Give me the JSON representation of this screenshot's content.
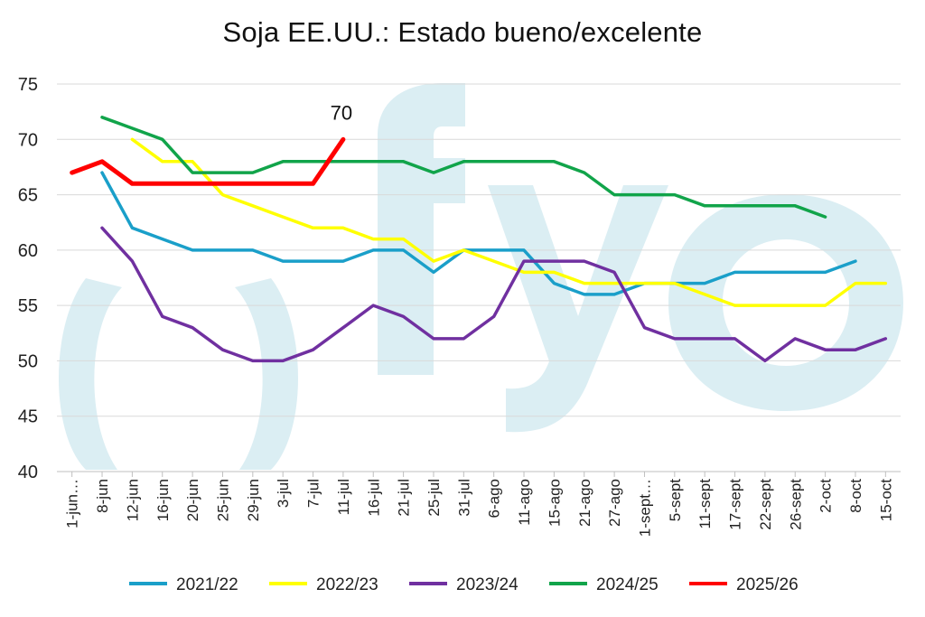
{
  "chart_data": {
    "type": "line",
    "title": "Soja EE.UU.: Estado bueno/excelente",
    "xlabel": "",
    "ylabel": "",
    "ylim": [
      40,
      75
    ],
    "yticks": [
      40,
      45,
      50,
      55,
      60,
      65,
      70,
      75
    ],
    "grid": true,
    "legend_position": "bottom",
    "categories": [
      "1-jun…",
      "8-jun",
      "12-jun",
      "16-jun",
      "20-jun",
      "25-jun",
      "29-jun",
      "3-jul",
      "7-jul",
      "11-jul",
      "16-jul",
      "21-jul",
      "25-jul",
      "31-jul",
      "6-ago",
      "11-ago",
      "15-ago",
      "21-ago",
      "27-ago",
      "1-sept…",
      "5-sept",
      "11-sept",
      "17-sept",
      "22-sept",
      "26-sept",
      "2-oct",
      "8-oct",
      "15-oct"
    ],
    "series": [
      {
        "name": "2021/22",
        "color": "#1a9fc9",
        "values": [
          null,
          67,
          62,
          61,
          60,
          60,
          60,
          59,
          59,
          59,
          60,
          60,
          58,
          60,
          60,
          60,
          57,
          56,
          56,
          57,
          57,
          57,
          58,
          58,
          58,
          58,
          59,
          null
        ]
      },
      {
        "name": "2022/23",
        "color": "#ffff00",
        "values": [
          null,
          null,
          70,
          68,
          68,
          65,
          64,
          63,
          62,
          62,
          61,
          61,
          59,
          60,
          59,
          58,
          58,
          57,
          57,
          57,
          57,
          56,
          55,
          55,
          55,
          55,
          57,
          57
        ]
      },
      {
        "name": "2023/24",
        "color": "#7030a0",
        "values": [
          null,
          62,
          59,
          54,
          53,
          51,
          50,
          50,
          51,
          53,
          55,
          54,
          52,
          52,
          54,
          59,
          59,
          59,
          58,
          53,
          52,
          52,
          52,
          50,
          52,
          51,
          51,
          52
        ]
      },
      {
        "name": "2024/25",
        "color": "#11a44a",
        "values": [
          null,
          72,
          71,
          70,
          67,
          67,
          67,
          68,
          68,
          68,
          68,
          68,
          67,
          68,
          68,
          68,
          68,
          67,
          65,
          65,
          65,
          64,
          64,
          64,
          64,
          63,
          null,
          null
        ]
      },
      {
        "name": "2025/26",
        "color": "#ff0000",
        "values": [
          67,
          68,
          66,
          66,
          66,
          66,
          66,
          66,
          66,
          70,
          null,
          null,
          null,
          null,
          null,
          null,
          null,
          null,
          null,
          null,
          null,
          null,
          null,
          null,
          null,
          null,
          null,
          null
        ]
      }
    ],
    "annotations": [
      {
        "series": "2025/26",
        "category": "11-jul",
        "text": "70"
      }
    ]
  }
}
